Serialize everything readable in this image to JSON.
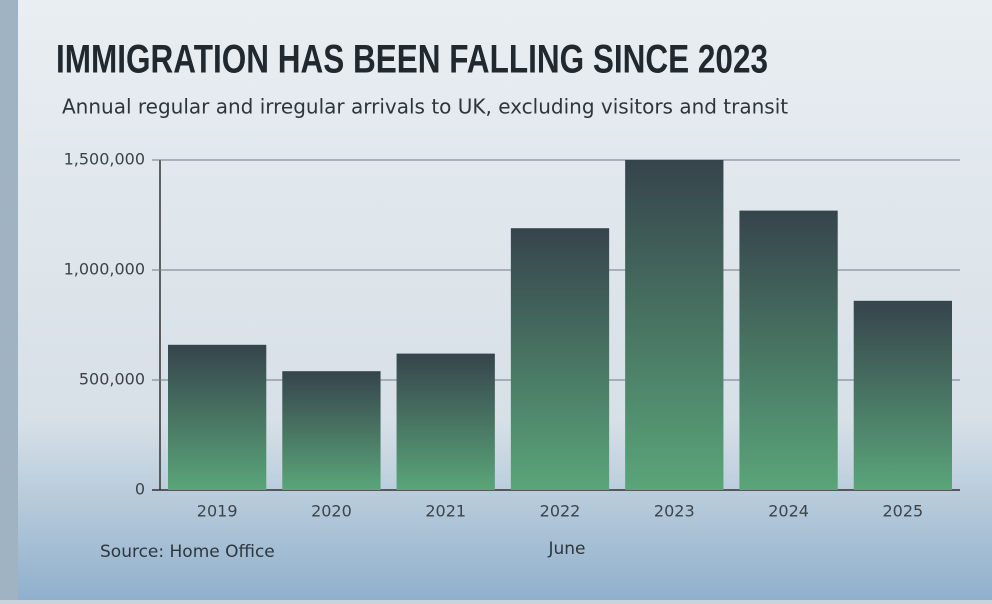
{
  "chart_data": {
    "type": "bar",
    "title": "IMMIGRATION HAS BEEN FALLING SINCE 2023",
    "subtitle": "Annual regular and irregular arrivals to UK, excluding visitors and transit",
    "categories": [
      "2019",
      "2020",
      "2021",
      "2022",
      "2023",
      "2024",
      "2025"
    ],
    "values": [
      660000,
      540000,
      620000,
      1190000,
      1500000,
      1270000,
      860000
    ],
    "gradient": [
      "#36444c",
      "#5aa579"
    ],
    "ylim": [
      0,
      1500000
    ],
    "yticks": [
      0,
      {
        "value": 500000,
        "label": "500,000"
      },
      {
        "value": 1000000,
        "label": "1,000,000"
      },
      {
        "value": 1500000,
        "label": "1,500,000"
      }
    ],
    "grid": true,
    "annotation": "June",
    "source": "Source: Home Office"
  }
}
